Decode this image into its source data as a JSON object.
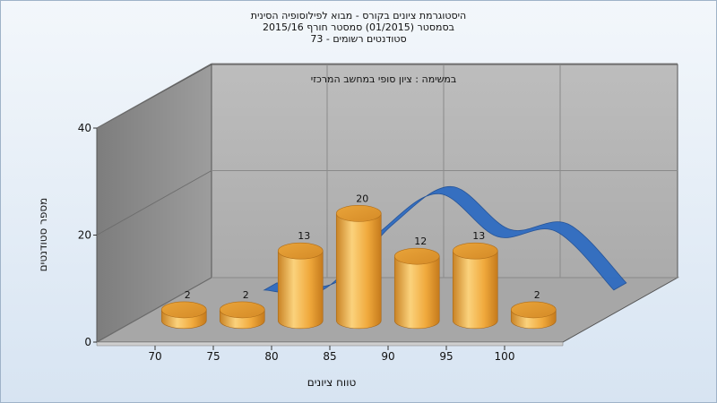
{
  "chart_data": {
    "type": "bar",
    "title_lines": [
      "היסטוגרמת ציונים בקורס - מבוא לפילוסופיה הסינית",
      "בסמסטר  (01/2015)  סמסטר חורף 2015/16",
      "סטודנטים רשומים - 73"
    ],
    "subtitle": "במשימה : ציון סופי במחשב המרכזי",
    "xlabel": "טווח ציונים",
    "ylabel": "מספר סטודנטים",
    "x_ticks": [
      "70",
      "75",
      "80",
      "85",
      "90",
      "95",
      "100"
    ],
    "y_ticks": [
      "0",
      "20",
      "40"
    ],
    "ylim": [
      0,
      40
    ],
    "categories": [
      "70",
      "75",
      "80",
      "85",
      "90",
      "95",
      "100"
    ],
    "values": [
      2,
      2,
      13,
      20,
      12,
      13,
      2
    ],
    "data_labels": [
      "2",
      "2",
      "13",
      "20",
      "12",
      "13",
      "2"
    ],
    "grid": true,
    "legend": "none",
    "colors": {
      "bar_light": "#fbd27c",
      "bar_mid": "#f0a93c",
      "bar_dark": "#c97f1f",
      "curve": "#2f6cc1",
      "back_wall": "#b3b3b3",
      "side_wall": "#8d8d8d",
      "floor": "#a9a9a9"
    }
  }
}
